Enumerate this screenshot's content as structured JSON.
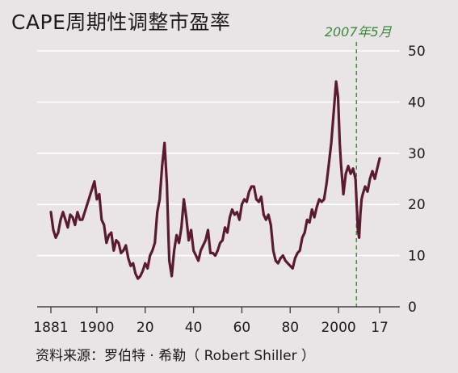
{
  "title": "CAPE周期性调整市盈率",
  "source": "资料来源：罗伯特 · 希勒（ Robert Shiller ）",
  "colors": {
    "line": "#5a1a30",
    "annotation": "#3a8a3a",
    "grid": "#ffffff",
    "axis": "#444444",
    "background": "#e9e4e6"
  },
  "chart_data": {
    "type": "line",
    "title": "CAPE周期性调整市盈率",
    "xlabel": "",
    "ylabel": "",
    "xlim": [
      1880,
      2018
    ],
    "ylim": [
      0,
      50
    ],
    "grid": true,
    "y_axis_side": "right",
    "x_tick_labels": [
      {
        "x": 1881,
        "label": "1881"
      },
      {
        "x": 1900,
        "label": "1900"
      },
      {
        "x": 1920,
        "label": "20"
      },
      {
        "x": 1940,
        "label": "40"
      },
      {
        "x": 1960,
        "label": "60"
      },
      {
        "x": 1980,
        "label": "80"
      },
      {
        "x": 2000,
        "label": "2000"
      },
      {
        "x": 2017,
        "label": "17"
      }
    ],
    "y_ticks": [
      0,
      10,
      20,
      30,
      40,
      50
    ],
    "annotation": {
      "x": 2007.4,
      "label": "2007年5月",
      "style": "dashed-vertical"
    },
    "series": [
      {
        "x": [
          1881,
          1882,
          1883,
          1884,
          1885,
          1886,
          1887,
          1888,
          1889,
          1890,
          1891,
          1892,
          1893,
          1894,
          1895,
          1896,
          1897,
          1898,
          1899,
          1900,
          1901,
          1902,
          1903,
          1904,
          1905,
          1906,
          1907,
          1908,
          1909,
          1910,
          1911,
          1912,
          1913,
          1914,
          1915,
          1916,
          1917,
          1918,
          1919,
          1920,
          1921,
          1922,
          1923,
          1924,
          1925,
          1926,
          1927,
          1928,
          1929,
          1929.7,
          1930,
          1931,
          1932,
          1933,
          1934,
          1935,
          1936,
          1937,
          1938,
          1939,
          1940,
          1941,
          1942,
          1943,
          1944,
          1945,
          1946,
          1947,
          1948,
          1949,
          1950,
          1951,
          1952,
          1953,
          1954,
          1955,
          1956,
          1957,
          1958,
          1959,
          1960,
          1961,
          1962,
          1963,
          1964,
          1965,
          1966,
          1967,
          1968,
          1969,
          1970,
          1971,
          1972,
          1973,
          1974,
          1975,
          1976,
          1977,
          1978,
          1979,
          1980,
          1981,
          1982,
          1983,
          1984,
          1985,
          1986,
          1987,
          1988,
          1989,
          1990,
          1991,
          1992,
          1993,
          1994,
          1995,
          1996,
          1997,
          1998,
          1999,
          1999.8,
          2000.5,
          2001,
          2002,
          2003,
          2004,
          2005,
          2006,
          2007,
          2008,
          2008.5,
          2009,
          2009.5,
          2010,
          2011,
          2012,
          2013,
          2014,
          2015,
          2016,
          2017
        ],
        "y": [
          18.5,
          15,
          13.5,
          14.5,
          17,
          18.5,
          17,
          15.5,
          18,
          17.5,
          16,
          18.5,
          17,
          17,
          18.5,
          20,
          21.5,
          23,
          24.5,
          21,
          22,
          17,
          16,
          12.5,
          14,
          14.5,
          11,
          13,
          12.5,
          10.5,
          11,
          12,
          9.5,
          8,
          8.5,
          6.5,
          5.5,
          6,
          7,
          8.5,
          7.5,
          10,
          11,
          12.5,
          18.5,
          21,
          27.5,
          32,
          24,
          13,
          9,
          6,
          11,
          14,
          12.5,
          15.5,
          21,
          17.5,
          13,
          15,
          11,
          10,
          9,
          11,
          12,
          13,
          15,
          10.5,
          10.5,
          10,
          11,
          12.5,
          13,
          15.5,
          14.5,
          17.5,
          19,
          18,
          18.5,
          17,
          20,
          21,
          20.5,
          22.5,
          23.5,
          23.5,
          21,
          20.5,
          21.5,
          18,
          17,
          18,
          16,
          11,
          9,
          8.5,
          9.5,
          10,
          9,
          8.5,
          8,
          7.5,
          9.5,
          10.5,
          11,
          13.5,
          14.5,
          17,
          16.5,
          19,
          17.5,
          19.5,
          21,
          20.5,
          21,
          24,
          28,
          32,
          38,
          44,
          41,
          32,
          28,
          22,
          26,
          27.5,
          26,
          27,
          25,
          15,
          13.5,
          18,
          21,
          22,
          23.5,
          22.5,
          25,
          26.5,
          25,
          27,
          29
        ]
      }
    ]
  }
}
